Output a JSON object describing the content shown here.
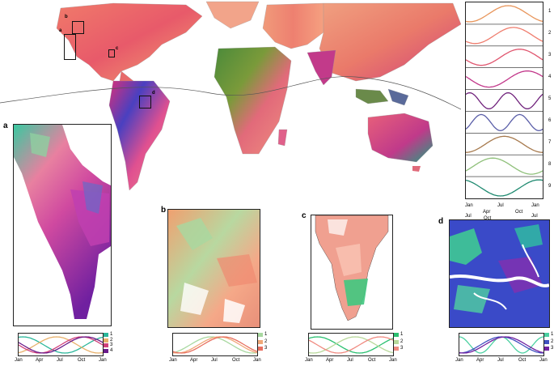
{
  "panel_letters": {
    "a": "a",
    "b": "b",
    "c": "c",
    "d": "d"
  },
  "inset_box_labels": {
    "a": "a",
    "b": "b",
    "c": "c",
    "d": "d"
  },
  "right_panel": {
    "rows": [
      "1",
      "2",
      "3",
      "4",
      "5",
      "6",
      "7",
      "8",
      "9"
    ],
    "row_colors": [
      "#e8955a",
      "#ef7d6e",
      "#e0556e",
      "#c2378a",
      "#6e1f7a",
      "#5a5ea8",
      "#a77a4e",
      "#8fc07a",
      "#1f8a70"
    ],
    "x_top": [
      "Jan",
      "Jul",
      "Jan"
    ],
    "x_bottom": [
      "Apr",
      "Oct"
    ],
    "x_bottom2": [
      "Jul",
      "Oct",
      "Jul"
    ]
  },
  "panel_a": {
    "legend": [
      "1",
      "2",
      "3",
      "4"
    ],
    "colors": [
      "#2ab79a",
      "#e8b06a",
      "#d0407a",
      "#6a1a8a"
    ],
    "xticks": [
      "Jan",
      "Apr",
      "Jul",
      "Oct",
      "Jan"
    ]
  },
  "panel_b": {
    "legend": [
      "1",
      "2",
      "3"
    ],
    "colors": [
      "#a8d8a0",
      "#f0a878",
      "#e87060"
    ],
    "xticks": [
      "Jan",
      "Apr",
      "Jul",
      "Oct",
      "Jan"
    ]
  },
  "panel_c": {
    "legend": [
      "1",
      "2",
      "3"
    ],
    "colors": [
      "#2ac070",
      "#b8d89a",
      "#f08a80"
    ],
    "xticks": [
      "Jan",
      "Apr",
      "Jul",
      "Oct",
      "Jan"
    ]
  },
  "panel_d": {
    "legend": [
      "1",
      "2",
      "3"
    ],
    "colors": [
      "#4ad0a0",
      "#4050c0",
      "#7020a0"
    ],
    "xticks": [
      "Jan",
      "Apr",
      "Jul",
      "Oct",
      "Jan"
    ]
  }
}
